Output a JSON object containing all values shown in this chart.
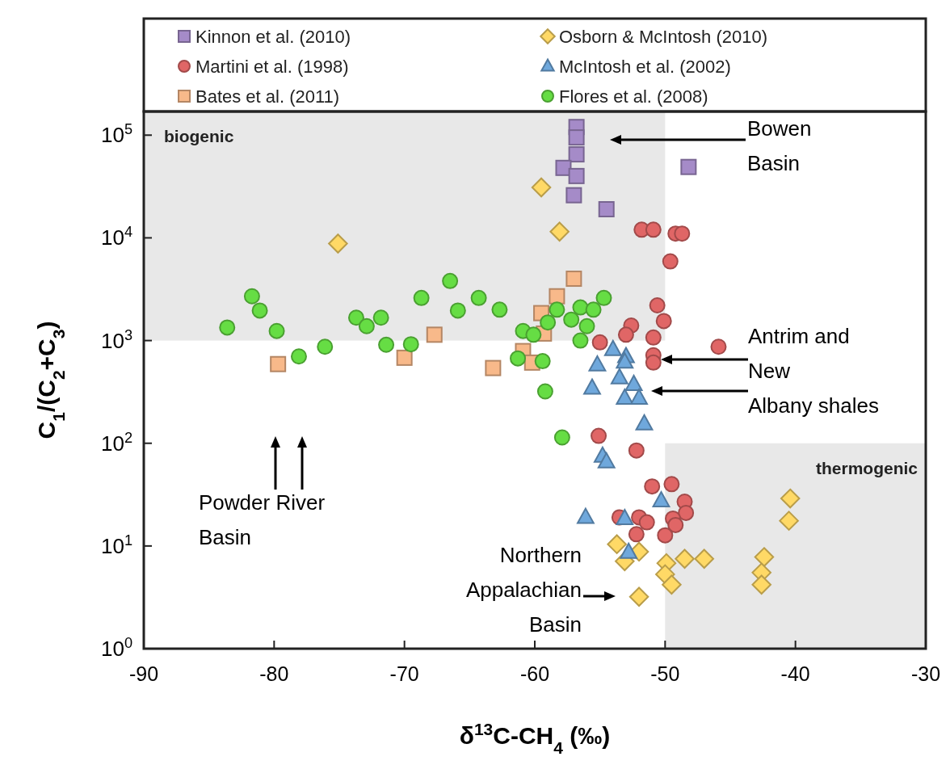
{
  "chart_data": {
    "type": "scatter",
    "xlabel": "δ$^{13}$C-CH$_{4}$ (‰)",
    "ylabel": "C$_{1}$/(C$_{2}$+C$_{3}$)",
    "xlim": [
      -90,
      -30
    ],
    "xticks": [
      -90,
      -80,
      -70,
      -60,
      -50,
      -40,
      -30
    ],
    "ylim": [
      1,
      170000
    ],
    "yticks": [
      {
        "value": 1,
        "label": "10$^{0}$"
      },
      {
        "value": 10,
        "label": "10$^{1}$"
      },
      {
        "value": 100,
        "label": "10$^{2}$"
      },
      {
        "value": 1000,
        "label": "10$^{3}$"
      },
      {
        "value": 10000,
        "label": "10$^{4}$"
      },
      {
        "value": 100000,
        "label": "10$^{5}$"
      }
    ],
    "log": "y",
    "grid": false,
    "legend": "top",
    "bands": [
      {
        "axis": "x",
        "from": -90,
        "to": -50,
        "label": "biogenic",
        "color": "#e8e8e8"
      },
      {
        "axis": "x",
        "from": -50,
        "to": -30,
        "label": "thermogenic",
        "color": "#e8e8e8"
      }
    ],
    "annotations": [
      "Bowen Basin",
      "Antrim and New Albany shales",
      "Powder River Basin",
      "Northern Appalachian Basin"
    ],
    "series": [
      {
        "name": "Kinnon et al. (2010)",
        "color": "#a58bc8",
        "marker": "square",
        "x": [
          -56.8,
          -56.8,
          -56.8,
          -57.8,
          -56.8,
          -57.0,
          -54.5,
          -48.2
        ],
        "values": [
          120000,
          95000,
          65000,
          48000,
          40000,
          26000,
          19000,
          49000
        ]
      },
      {
        "name": "Martini et al. (1998)",
        "color": "#e06666",
        "marker": "circle",
        "x": [
          -51.8,
          -50.9,
          -49.2,
          -48.7,
          -49.6,
          -50.6,
          -50.1,
          -52.6,
          -53.0,
          -50.9,
          -55.0,
          -50.9,
          -50.9,
          -45.9,
          -55.1,
          -52.2,
          -51.0,
          -49.5,
          -48.5,
          -48.4,
          -49.4,
          -49.2,
          -52.0,
          -53.5,
          -51.4,
          -52.2,
          -50.0
        ],
        "values": [
          12000,
          12000,
          11000,
          11000,
          5900,
          2200,
          1550,
          1400,
          1140,
          1070,
          960,
          720,
          610,
          870,
          118,
          85,
          38,
          40,
          27,
          21,
          18.5,
          16,
          19,
          19,
          17,
          13,
          12.7
        ]
      },
      {
        "name": "Bates et al. (2011)",
        "color": "#f8b98a",
        "marker": "square",
        "x": [
          -79.7,
          -67.7,
          -70.0,
          -63.2,
          -60.9,
          -59.5,
          -57.0,
          -58.3,
          -59.3,
          -60.2
        ],
        "values": [
          590,
          1140,
          680,
          540,
          790,
          1850,
          4000,
          2700,
          1170,
          610
        ]
      },
      {
        "name": "Osborn & McIntosh (2010)",
        "color": "#ffd966",
        "marker": "diamond",
        "x": [
          -59.5,
          -75.1,
          -58.1,
          -53.7,
          -52.0,
          -53.1,
          -49.9,
          -48.5,
          -47.0,
          -50.0,
          -49.5,
          -52.0,
          -42.4,
          -42.6,
          -42.6,
          -40.4,
          -40.5
        ],
        "values": [
          31000,
          8800,
          11500,
          10.4,
          8.8,
          7.1,
          6.8,
          7.5,
          7.5,
          5.3,
          4.2,
          3.2,
          7.8,
          5.5,
          4.2,
          29,
          17.6
        ]
      },
      {
        "name": "McIntosh et al. (2002)",
        "color": "#6fa8dc",
        "marker": "triangle",
        "x": [
          -54.0,
          -53.0,
          -55.2,
          -53.1,
          -53.5,
          -52.4,
          -55.6,
          -53.1,
          -52.0,
          -51.6,
          -54.8,
          -54.5,
          -50.3,
          -56.1,
          -53.1,
          -52.8
        ],
        "values": [
          820,
          700,
          580,
          620,
          435,
          375,
          345,
          275,
          275,
          155,
          75,
          66,
          27.6,
          19,
          18.5,
          8.7
        ]
      },
      {
        "name": "Flores et al. (2008)",
        "color": "#66dd44",
        "marker": "circle",
        "x": [
          -83.6,
          -81.7,
          -81.1,
          -79.8,
          -78.1,
          -76.1,
          -73.7,
          -72.9,
          -71.8,
          -71.4,
          -69.5,
          -68.7,
          -66.5,
          -65.9,
          -64.3,
          -62.7,
          -60.9,
          -60.1,
          -61.3,
          -59.4,
          -59.2,
          -58.3,
          -59.0,
          -56.5,
          -55.5,
          -54.7,
          -57.2,
          -56.0,
          -56.5,
          -57.9
        ],
        "values": [
          1340,
          2700,
          1960,
          1240,
          700,
          870,
          1670,
          1380,
          1670,
          910,
          920,
          2600,
          3800,
          1960,
          2600,
          2000,
          1240,
          1140,
          670,
          630,
          320,
          2000,
          1500,
          2100,
          2000,
          2600,
          1600,
          1380,
          1000,
          114
        ]
      }
    ]
  }
}
